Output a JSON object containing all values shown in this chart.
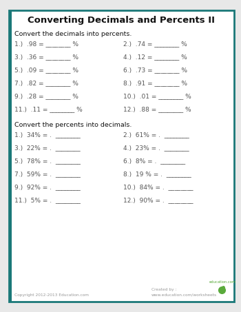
{
  "title": "Converting Decimals and Percents II",
  "bg_outer": "#e8e8e8",
  "bg_inner": "#ffffff",
  "border_color": "#1a7878",
  "section1_header": "Convert the decimals into percents.",
  "section2_header": "Convert the percents into decimals.",
  "section1_left": [
    "1.)  .98 = ________ %",
    "3.)  .36 = ________ %",
    "5.)  .09 = ________ %",
    "7.)  .82 = ________ %",
    "9.)  .28 = ________ %",
    "11.)  .11 = ________ %"
  ],
  "section1_right": [
    "2.)  .74 = ________ %",
    "4.)  .12 = ________ %",
    "6.)  .73 = ________ %",
    "8.)  .91 = ________ %",
    "10.)  .01 = ________ %",
    "12.)  .88 = ________ %"
  ],
  "section2_left": [
    "1.)  34% = .  ________",
    "3.)  22% = .  ________",
    "5.)  78% = .  ________",
    "7.)  59% = .  ________",
    "9.)  92% = .  ________",
    "11.)  5% = .  ________"
  ],
  "section2_right": [
    "2.)  61% = .  ________",
    "4.)  23% = .  ________",
    "6.)  8% = .  ________",
    "8.)  19 % = .  ________",
    "10.)  84% = .  ________",
    "12.)  90% = .  ________"
  ],
  "footer_left": "Copyright 2012-2013 Education.com",
  "footer_created": "Created by :",
  "footer_right": "www.education.com/worksheets",
  "title_fontsize": 9.5,
  "header_fontsize": 6.8,
  "item_fontsize": 6.5,
  "footer_fontsize": 4.2
}
